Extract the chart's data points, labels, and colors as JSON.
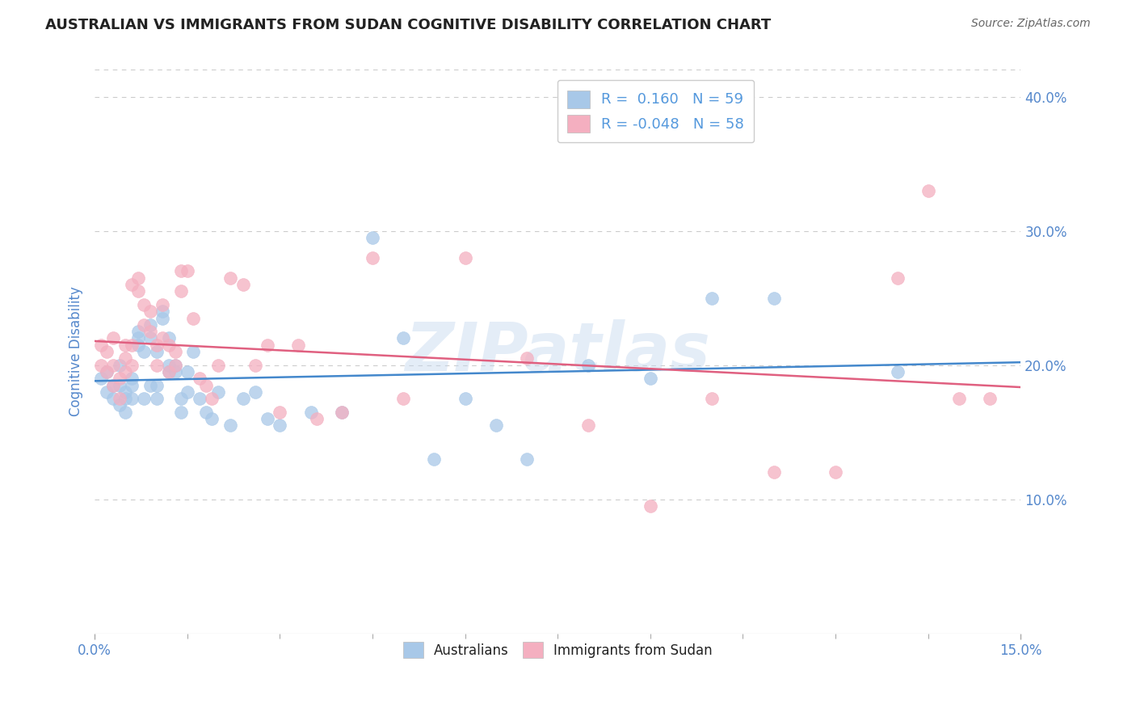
{
  "title": "AUSTRALIAN VS IMMIGRANTS FROM SUDAN COGNITIVE DISABILITY CORRELATION CHART",
  "source": "Source: ZipAtlas.com",
  "ylabel": "Cognitive Disability",
  "xlim": [
    0.0,
    0.15
  ],
  "ylim": [
    0.0,
    0.42
  ],
  "yticks_right": [
    0.1,
    0.2,
    0.3,
    0.4
  ],
  "R_australian": 0.16,
  "N_australian": 59,
  "R_sudan": -0.048,
  "N_sudan": 58,
  "blue_scatter_color": "#a8c8e8",
  "pink_scatter_color": "#f4afc0",
  "blue_line_color": "#4488cc",
  "pink_line_color": "#e06080",
  "blue_legend_color": "#5599dd",
  "watermark": "ZIPatlas",
  "title_color": "#222222",
  "source_color": "#666666",
  "tick_color": "#5588cc",
  "background_color": "#ffffff",
  "grid_color": "#cccccc",
  "australians_x": [
    0.001,
    0.002,
    0.002,
    0.003,
    0.003,
    0.004,
    0.004,
    0.004,
    0.005,
    0.005,
    0.005,
    0.006,
    0.006,
    0.006,
    0.007,
    0.007,
    0.007,
    0.008,
    0.008,
    0.009,
    0.009,
    0.009,
    0.01,
    0.01,
    0.01,
    0.011,
    0.011,
    0.012,
    0.012,
    0.012,
    0.013,
    0.013,
    0.014,
    0.014,
    0.015,
    0.015,
    0.016,
    0.017,
    0.018,
    0.019,
    0.02,
    0.022,
    0.024,
    0.026,
    0.028,
    0.03,
    0.035,
    0.04,
    0.045,
    0.05,
    0.055,
    0.06,
    0.065,
    0.07,
    0.08,
    0.09,
    0.1,
    0.11,
    0.13
  ],
  "australians_y": [
    0.19,
    0.18,
    0.195,
    0.175,
    0.185,
    0.2,
    0.17,
    0.185,
    0.165,
    0.175,
    0.18,
    0.19,
    0.175,
    0.185,
    0.22,
    0.215,
    0.225,
    0.175,
    0.21,
    0.185,
    0.23,
    0.22,
    0.175,
    0.21,
    0.185,
    0.235,
    0.24,
    0.195,
    0.2,
    0.22,
    0.195,
    0.2,
    0.165,
    0.175,
    0.195,
    0.18,
    0.21,
    0.175,
    0.165,
    0.16,
    0.18,
    0.155,
    0.175,
    0.18,
    0.16,
    0.155,
    0.165,
    0.165,
    0.295,
    0.22,
    0.13,
    0.175,
    0.155,
    0.13,
    0.2,
    0.19,
    0.25,
    0.25,
    0.195
  ],
  "sudan_x": [
    0.001,
    0.001,
    0.002,
    0.002,
    0.003,
    0.003,
    0.003,
    0.004,
    0.004,
    0.005,
    0.005,
    0.005,
    0.006,
    0.006,
    0.006,
    0.007,
    0.007,
    0.008,
    0.008,
    0.009,
    0.009,
    0.01,
    0.01,
    0.011,
    0.011,
    0.012,
    0.012,
    0.013,
    0.013,
    0.014,
    0.014,
    0.015,
    0.016,
    0.017,
    0.018,
    0.019,
    0.02,
    0.022,
    0.024,
    0.026,
    0.028,
    0.03,
    0.033,
    0.036,
    0.04,
    0.045,
    0.05,
    0.06,
    0.07,
    0.08,
    0.09,
    0.1,
    0.11,
    0.12,
    0.13,
    0.135,
    0.14,
    0.145
  ],
  "sudan_y": [
    0.2,
    0.215,
    0.195,
    0.21,
    0.185,
    0.2,
    0.22,
    0.175,
    0.19,
    0.205,
    0.195,
    0.215,
    0.2,
    0.215,
    0.26,
    0.255,
    0.265,
    0.23,
    0.245,
    0.225,
    0.24,
    0.2,
    0.215,
    0.22,
    0.245,
    0.195,
    0.215,
    0.2,
    0.21,
    0.255,
    0.27,
    0.27,
    0.235,
    0.19,
    0.185,
    0.175,
    0.2,
    0.265,
    0.26,
    0.2,
    0.215,
    0.165,
    0.215,
    0.16,
    0.165,
    0.28,
    0.175,
    0.28,
    0.205,
    0.155,
    0.095,
    0.175,
    0.12,
    0.12,
    0.265,
    0.33,
    0.175,
    0.175
  ]
}
